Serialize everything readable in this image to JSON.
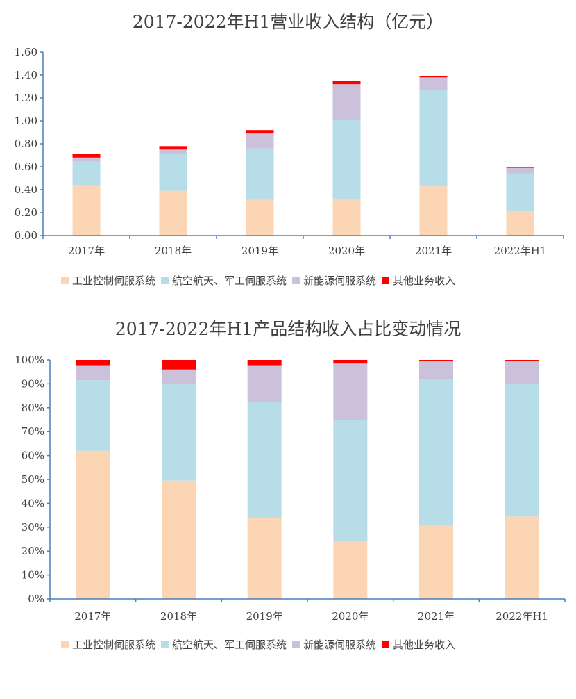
{
  "chart_data": [
    {
      "type": "bar",
      "stacked": true,
      "title": "2017-2022年H1营业收入结构（亿元）",
      "categories": [
        "2017年",
        "2018年",
        "2019年",
        "2020年",
        "2021年",
        "2022年H1"
      ],
      "ylim": [
        0,
        1.6
      ],
      "yticks": [
        "0.00",
        "0.20",
        "0.40",
        "0.60",
        "0.80",
        "1.00",
        "1.20",
        "1.40",
        "1.60"
      ],
      "grid": false,
      "legend_position": "bottom",
      "series": [
        {
          "name": "工业控制伺服系统",
          "color": "#fcd5b5",
          "values": [
            0.44,
            0.39,
            0.31,
            0.32,
            0.43,
            0.21
          ]
        },
        {
          "name": "航空航天、军工伺服系统",
          "color": "#b7dee8",
          "values": [
            0.21,
            0.32,
            0.45,
            0.69,
            0.84,
            0.33
          ]
        },
        {
          "name": "新能源伺服系统",
          "color": "#ccc1da",
          "values": [
            0.03,
            0.04,
            0.13,
            0.31,
            0.11,
            0.05
          ]
        },
        {
          "name": "其他业务收入",
          "color": "#ff0000",
          "values": [
            0.03,
            0.03,
            0.03,
            0.03,
            0.01,
            0.01
          ]
        }
      ]
    },
    {
      "type": "bar",
      "stacked": true,
      "title": "2017-2022年H1产品结构收入占比变动情况",
      "categories": [
        "2017年",
        "2018年",
        "2019年",
        "2020年",
        "2021年",
        "2022年H1"
      ],
      "ylim": [
        0,
        100
      ],
      "yticks": [
        "0%",
        "10%",
        "20%",
        "30%",
        "40%",
        "50%",
        "60%",
        "70%",
        "80%",
        "90%",
        "100%"
      ],
      "grid": false,
      "legend_position": "bottom",
      "series": [
        {
          "name": "工业控制伺服系统",
          "color": "#fcd5b5",
          "values": [
            62,
            49.5,
            34,
            24,
            31,
            34.5
          ]
        },
        {
          "name": "航空航天、军工伺服系统",
          "color": "#b7dee8",
          "values": [
            29.5,
            40.5,
            48.5,
            51,
            61,
            55.5
          ]
        },
        {
          "name": "新能源伺服系统",
          "color": "#ccc1da",
          "values": [
            6,
            6,
            15,
            23.5,
            7.5,
            9.5
          ]
        },
        {
          "name": "其他业务收入",
          "color": "#ff0000",
          "values": [
            2.5,
            4,
            2.5,
            1.5,
            0.5,
            0.5
          ]
        }
      ]
    }
  ]
}
